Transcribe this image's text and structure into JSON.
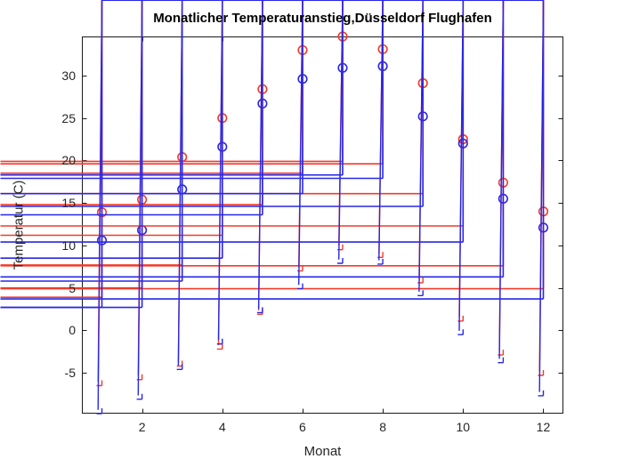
{
  "figure": {
    "background": "#ffffff",
    "axis_color": "#1a1a1a",
    "label_color": "#262626"
  },
  "chart_data": {
    "type": "scatter",
    "title": "Monatlicher Temperaturanstieg,Düsseldorf Flughafen",
    "xlabel": "Monat",
    "ylabel": "Temperatur (C)",
    "x": [
      1,
      2,
      3,
      4,
      5,
      6,
      7,
      8,
      9,
      10,
      11,
      12
    ],
    "xlim": [
      0.5,
      12.5
    ],
    "ylim": [
      -9.8,
      34.6
    ],
    "xticks": [
      2,
      4,
      6,
      8,
      10,
      12
    ],
    "yticks": [
      -5,
      0,
      5,
      10,
      15,
      20,
      25,
      30
    ],
    "grid": false,
    "legend_position": "none",
    "series": [
      {
        "name": "red-circles",
        "marker": "circle",
        "color": "#f23a2a",
        "values": [
          13.9,
          15.4,
          20.4,
          25.0,
          28.4,
          33.0,
          34.6,
          33.1,
          29.1,
          22.5,
          17.4,
          14.0
        ]
      },
      {
        "name": "blue-circles",
        "marker": "circle",
        "color": "#2727e8",
        "values": [
          10.6,
          11.8,
          16.6,
          21.6,
          26.7,
          29.6,
          30.9,
          31.1,
          25.2,
          22.0,
          15.5,
          12.1
        ]
      },
      {
        "name": "red-plus",
        "marker": "plus",
        "color": "#f23a2a",
        "values": [
          3.9,
          5.0,
          7.7,
          11.2,
          14.8,
          18.5,
          19.9,
          19.6,
          16.1,
          12.3,
          7.6,
          4.9
        ]
      },
      {
        "name": "blue-plus",
        "marker": "plus",
        "color": "#2727e8",
        "values": [
          2.7,
          2.7,
          5.8,
          8.5,
          13.6,
          16.1,
          18.3,
          17.9,
          14.6,
          10.4,
          6.3,
          3.7
        ]
      },
      {
        "name": "red-asterisks",
        "marker": "asterisk",
        "color": "#f23a2a",
        "values": [
          -6.5,
          -5.8,
          -4.2,
          -2.2,
          1.9,
          7.0,
          9.5,
          8.6,
          5.6,
          1.1,
          -2.9,
          -5.3
        ]
      },
      {
        "name": "blue-asterisks",
        "marker": "asterisk",
        "color": "#2727e8",
        "values": [
          -9.8,
          -8.1,
          -4.6,
          -1.6,
          2.1,
          4.9,
          7.9,
          7.8,
          4.1,
          -0.5,
          -3.8,
          -7.7
        ]
      }
    ]
  }
}
